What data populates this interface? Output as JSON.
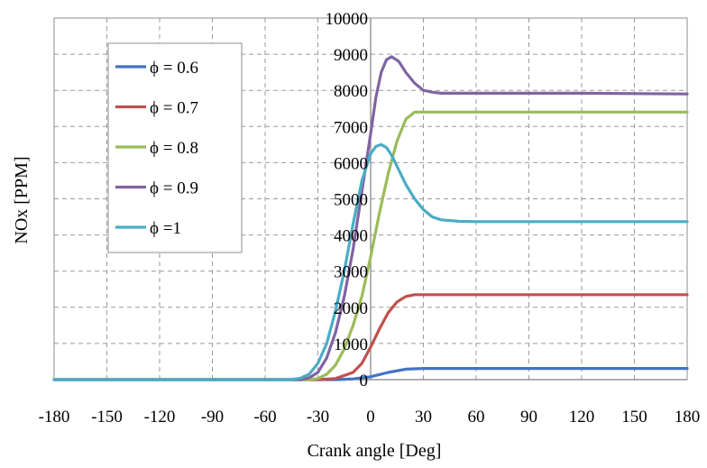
{
  "chart_data": {
    "type": "line",
    "title": "",
    "xlabel": "Crank angle [Deg]",
    "ylabel": "NOx  [PPM]",
    "xlim": [
      -180,
      180
    ],
    "ylim": [
      0,
      10000
    ],
    "xticks": [
      -180,
      -150,
      -120,
      -90,
      -60,
      -30,
      0,
      30,
      60,
      90,
      120,
      150,
      180
    ],
    "yticks": [
      0,
      1000,
      2000,
      3000,
      4000,
      5000,
      6000,
      7000,
      8000,
      9000,
      10000
    ],
    "grid": true,
    "legend_position": "top-left",
    "series": [
      {
        "name": "ϕ = 0.6",
        "color": "#4472c4",
        "x": [
          -180,
          -30,
          -20,
          -10,
          0,
          10,
          20,
          25,
          30,
          60,
          120,
          180
        ],
        "y": [
          0,
          0,
          0,
          20,
          80,
          200,
          290,
          300,
          310,
          310,
          310,
          310
        ]
      },
      {
        "name": "ϕ = 0.7",
        "color": "#c0504d",
        "x": [
          -180,
          -30,
          -20,
          -10,
          -5,
          0,
          5,
          10,
          15,
          20,
          25,
          30,
          60,
          120,
          180
        ],
        "y": [
          0,
          0,
          30,
          200,
          450,
          900,
          1400,
          1850,
          2150,
          2300,
          2350,
          2350,
          2350,
          2350,
          2350
        ]
      },
      {
        "name": "ϕ = 0.8",
        "color": "#9bbb59",
        "x": [
          -180,
          -35,
          -30,
          -25,
          -20,
          -15,
          -10,
          -5,
          0,
          5,
          10,
          15,
          20,
          25,
          30,
          60,
          120,
          180
        ],
        "y": [
          0,
          0,
          30,
          150,
          400,
          850,
          1500,
          2300,
          3400,
          4600,
          5700,
          6600,
          7200,
          7400,
          7400,
          7400,
          7400,
          7400
        ]
      },
      {
        "name": "ϕ = 0.9",
        "color": "#8064a2",
        "x": [
          -180,
          -40,
          -35,
          -30,
          -25,
          -20,
          -15,
          -10,
          -5,
          0,
          3,
          6,
          9,
          12,
          16,
          20,
          25,
          30,
          35,
          40,
          50,
          60,
          120,
          180
        ],
        "y": [
          0,
          0,
          50,
          200,
          600,
          1300,
          2300,
          3600,
          5200,
          6800,
          7800,
          8500,
          8850,
          8930,
          8800,
          8500,
          8200,
          8000,
          7950,
          7920,
          7920,
          7920,
          7920,
          7900
        ]
      },
      {
        "name": "ϕ =1",
        "color": "#4bacc6",
        "x": [
          -180,
          -45,
          -40,
          -35,
          -30,
          -25,
          -20,
          -15,
          -10,
          -5,
          0,
          3,
          6,
          9,
          12,
          16,
          20,
          25,
          30,
          35,
          40,
          50,
          60,
          120,
          180
        ],
        "y": [
          0,
          0,
          40,
          150,
          450,
          1000,
          1900,
          3000,
          4300,
          5500,
          6250,
          6450,
          6500,
          6420,
          6200,
          5800,
          5400,
          5000,
          4700,
          4500,
          4420,
          4380,
          4370,
          4370,
          4370
        ]
      }
    ]
  }
}
